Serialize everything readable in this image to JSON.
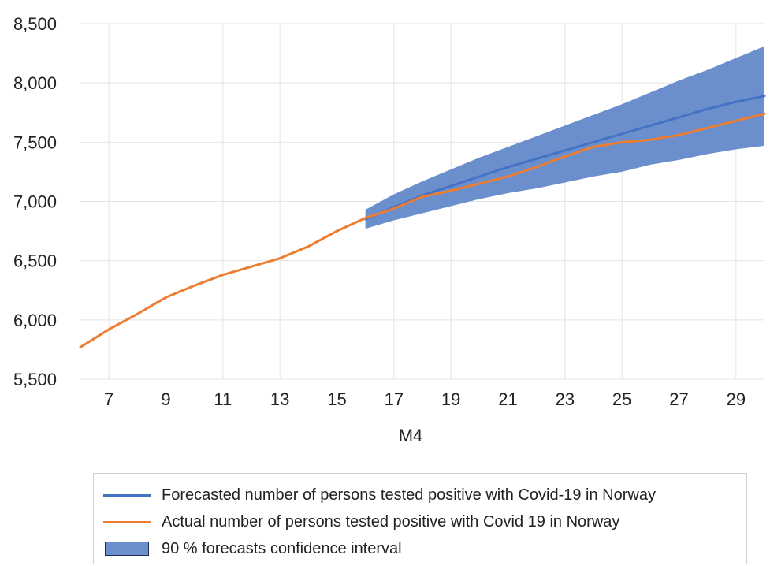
{
  "chart_data": {
    "type": "line",
    "title": "",
    "xlabel": "M4",
    "ylabel": "",
    "xlim": [
      6,
      30
    ],
    "ylim": [
      5500,
      8500
    ],
    "x_ticks": [
      "7",
      "9",
      "11",
      "13",
      "15",
      "17",
      "19",
      "21",
      "23",
      "25",
      "27",
      "29"
    ],
    "y_ticks": [
      "5,500",
      "6,000",
      "6,500",
      "7,000",
      "7,500",
      "8,000",
      "8,500"
    ],
    "grid": true,
    "legend_position": "bottom",
    "series": [
      {
        "name": "Forecasted number of persons tested positive with Covid-19 in Norway",
        "color": "#4472c4",
        "x": [
          16,
          17,
          18,
          19,
          20,
          21,
          22,
          23,
          24,
          25,
          26,
          27,
          28,
          29,
          30
        ],
        "y": [
          6850,
          6950,
          7050,
          7130,
          7210,
          7290,
          7360,
          7430,
          7500,
          7570,
          7640,
          7710,
          7780,
          7840,
          7890
        ]
      },
      {
        "name": "Actual number of persons tested positive with Covid 19 in Norway",
        "color": "#ed7d31",
        "x": [
          6,
          7,
          8,
          9,
          10,
          11,
          12,
          13,
          14,
          15,
          16,
          17,
          18,
          19,
          20,
          21,
          22,
          23,
          24,
          25,
          26,
          27,
          28,
          29,
          30
        ],
        "y": [
          5770,
          5920,
          6050,
          6190,
          6290,
          6380,
          6450,
          6520,
          6620,
          6750,
          6860,
          6940,
          7040,
          7090,
          7150,
          7210,
          7290,
          7380,
          7460,
          7500,
          7520,
          7560,
          7620,
          7680,
          7740
        ]
      }
    ],
    "band": {
      "name": "90 % forecasts confidence interval",
      "color": "#6b8fcc",
      "x": [
        16,
        17,
        18,
        19,
        20,
        21,
        22,
        23,
        24,
        25,
        26,
        27,
        28,
        29,
        30
      ],
      "lower": [
        6770,
        6840,
        6900,
        6960,
        7020,
        7070,
        7110,
        7160,
        7210,
        7250,
        7310,
        7350,
        7400,
        7440,
        7470
      ],
      "upper": [
        6930,
        7060,
        7170,
        7270,
        7370,
        7460,
        7550,
        7640,
        7730,
        7820,
        7920,
        8020,
        8110,
        8210,
        8310
      ]
    }
  }
}
